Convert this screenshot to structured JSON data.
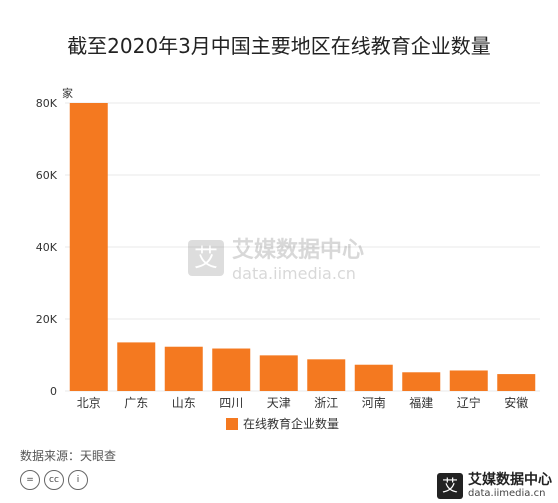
{
  "title": "截至2020年3月中国主要地区在线教育企业数量",
  "source": "数据来源：天眼查",
  "license_icons": [
    "=",
    "cc",
    "i"
  ],
  "brand": {
    "logo_char": "艾",
    "name": "艾媒数据中心",
    "url": "data.iimedia.cn"
  },
  "watermark": {
    "logo_char": "艾",
    "name": "艾媒数据中心",
    "url": "data.iimedia.cn"
  },
  "colors": {
    "bar": "#F47920",
    "grid": "#e8e8e8",
    "axis": "#999999"
  },
  "chart_data": {
    "type": "bar",
    "title": "截至2020年3月中国主要地区在线教育企业数量",
    "unit_label": "家",
    "categories": [
      "北京",
      "广东",
      "山东",
      "四川",
      "天津",
      "浙江",
      "河南",
      "福建",
      "辽宁",
      "安徽"
    ],
    "series": [
      {
        "name": "在线教育企业数量",
        "values": [
          80000,
          13500,
          12300,
          11800,
          9900,
          8800,
          7300,
          5200,
          5700,
          4700
        ]
      }
    ],
    "ylim": [
      0,
      80000
    ],
    "yticks": [
      0,
      20000,
      40000,
      60000,
      80000
    ],
    "ytick_labels": [
      "0",
      "20K",
      "40K",
      "60K",
      "80K"
    ],
    "grid": true,
    "legend_position": "bottom"
  }
}
